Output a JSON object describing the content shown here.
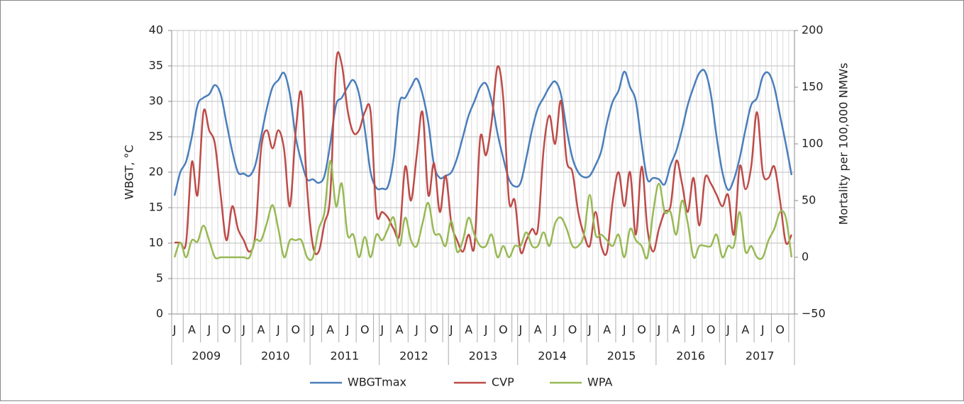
{
  "chart_data": {
    "type": "line",
    "categories": [
      "J",
      null,
      null,
      "A",
      null,
      null,
      "J",
      null,
      null,
      "O",
      null,
      null,
      "J",
      null,
      null,
      "A",
      null,
      null,
      "J",
      null,
      null,
      "O",
      null,
      null,
      "J",
      null,
      null,
      "A",
      null,
      null,
      "J",
      null,
      null,
      "O",
      null,
      null,
      "J",
      null,
      null,
      "A",
      null,
      null,
      "J",
      null,
      null,
      "O",
      null,
      null,
      "J",
      null,
      null,
      "A",
      null,
      null,
      "J",
      null,
      null,
      "O",
      null,
      null,
      "J",
      null,
      null,
      "A",
      null,
      null,
      "J",
      null,
      null,
      "O",
      null,
      null,
      "J",
      null,
      null,
      "A",
      null,
      null,
      "J",
      null,
      null,
      "O",
      null,
      null,
      "J",
      null,
      null,
      "A",
      null,
      null,
      "J",
      null,
      null,
      "O",
      null,
      null,
      "J",
      null,
      null,
      "A",
      null,
      null,
      "J",
      null,
      null,
      "O",
      null,
      null
    ],
    "year_groups": [
      "2009",
      "2010",
      "2011",
      "2012",
      "2013",
      "2014",
      "2015",
      "2016",
      "2017"
    ],
    "y_label": "WBGT, °C",
    "y2_label": "Mortality per 100,000 NMWs",
    "ylim": [
      0,
      40
    ],
    "yticks": [
      0,
      5,
      10,
      15,
      20,
      25,
      30,
      35,
      40
    ],
    "y2lim": [
      -50,
      200
    ],
    "y2ticks": [
      {
        "value": -50,
        "label": "−50"
      },
      0,
      50,
      100,
      150,
      200
    ],
    "grid": true,
    "legend": "bottom",
    "series": [
      {
        "name": "WBGTmax",
        "color": "#4a7ebb",
        "values": [
          16.7,
          20,
          21.5,
          25,
          29.5,
          30.5,
          31,
          32.3,
          31,
          27,
          23,
          20,
          19.8,
          19.5,
          21,
          25,
          29,
          32,
          33,
          34,
          31,
          25,
          21.5,
          19,
          19,
          18.5,
          19.5,
          24,
          29.5,
          30.5,
          32,
          33,
          31,
          26,
          20,
          17.8,
          17.7,
          18,
          22,
          29.8,
          30.5,
          32,
          33.2,
          31,
          27,
          21,
          19.2,
          19.5,
          20,
          22,
          25,
          28,
          30,
          32,
          32.5,
          30,
          25.5,
          22,
          19,
          18,
          18.5,
          22,
          26,
          29,
          30.5,
          32,
          32.8,
          31,
          26,
          22,
          20,
          19.3,
          19.5,
          21,
          23,
          27,
          30,
          31.5,
          34.2,
          32,
          30,
          24,
          19,
          19.2,
          19,
          18.3,
          21,
          23,
          26,
          29.5,
          32,
          34,
          34.2,
          31,
          25,
          20,
          17.5,
          19,
          22,
          26,
          29.5,
          30.5,
          33.5,
          34,
          32,
          28,
          24,
          19.6
        ]
      },
      {
        "name": "CVP",
        "color": "#be4b48",
        "axis": "y2",
        "values": [
          13,
          13,
          13,
          84,
          55,
          128,
          112,
          100,
          55,
          15,
          45,
          25,
          15,
          5,
          20,
          95,
          112,
          96,
          112,
          95,
          45,
          110,
          145,
          60,
          10,
          5,
          30,
          55,
          171,
          170,
          130,
          110,
          112,
          128,
          128,
          40,
          40,
          35,
          25,
          20,
          80,
          50,
          90,
          128,
          55,
          83,
          40,
          72,
          30,
          15,
          5,
          20,
          10,
          105,
          90,
          120,
          168,
          140,
          50,
          50,
          5,
          15,
          25,
          25,
          95,
          125,
          100,
          138,
          85,
          75,
          40,
          20,
          10,
          40,
          10,
          5,
          50,
          75,
          45,
          75,
          20,
          80,
          25,
          5,
          25,
          40,
          45,
          85,
          65,
          40,
          70,
          28,
          70,
          65,
          55,
          45,
          55,
          20,
          80,
          60,
          80,
          128,
          75,
          70,
          80,
          50,
          13,
          20
        ]
      },
      {
        "name": "WPA",
        "color": "#98b954",
        "axis": "y2",
        "values": [
          0,
          13,
          0,
          15,
          14,
          28,
          15,
          0,
          0,
          0,
          0,
          0,
          0,
          0,
          15,
          15,
          30,
          46,
          25,
          0,
          15,
          15,
          15,
          0,
          0,
          25,
          40,
          85,
          45,
          65,
          20,
          20,
          0,
          18,
          0,
          20,
          15,
          25,
          35,
          10,
          35,
          15,
          10,
          30,
          48,
          22,
          20,
          10,
          32,
          5,
          15,
          35,
          20,
          10,
          10,
          20,
          0,
          10,
          0,
          10,
          10,
          22,
          10,
          10,
          22,
          10,
          30,
          35,
          25,
          10,
          10,
          20,
          55,
          20,
          20,
          15,
          10,
          20,
          0,
          25,
          15,
          10,
          0,
          40,
          65,
          40,
          40,
          20,
          50,
          30,
          0,
          10,
          10,
          10,
          20,
          0,
          10,
          10,
          40,
          5,
          10,
          0,
          0,
          15,
          25,
          40,
          35,
          0
        ]
      }
    ]
  }
}
